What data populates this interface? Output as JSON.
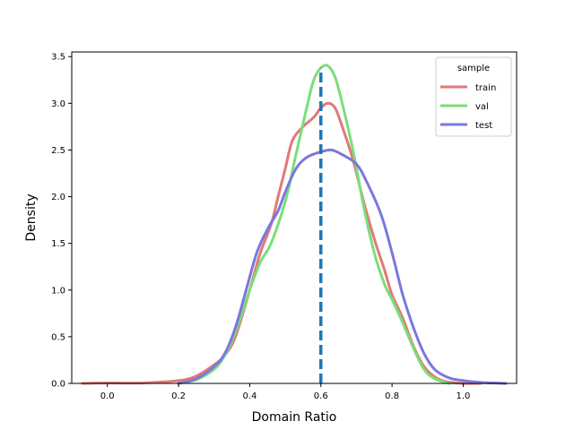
{
  "chart_data": {
    "type": "line",
    "xlabel": "Domain Ratio",
    "ylabel": "Density",
    "xlim": [
      -0.1,
      1.15
    ],
    "ylim": [
      0,
      3.55
    ],
    "xticks": [
      0.0,
      0.2,
      0.4,
      0.6,
      0.8,
      1.0
    ],
    "xtick_labels": [
      "0.0",
      "0.2",
      "0.4",
      "0.6",
      "0.8",
      "1.0"
    ],
    "yticks": [
      0.0,
      0.5,
      1.0,
      1.5,
      2.0,
      2.5,
      3.0,
      3.5
    ],
    "ytick_labels": [
      "0.0",
      "0.5",
      "1.0",
      "1.5",
      "2.0",
      "2.5",
      "3.0",
      "3.5"
    ],
    "grid": false,
    "legend": {
      "title": "sample",
      "position": "top-right"
    },
    "series": [
      {
        "name": "train",
        "color": "#e07a76",
        "points": [
          [
            -0.07,
            0.0
          ],
          [
            0.0,
            0.005
          ],
          [
            0.1,
            0.005
          ],
          [
            0.2,
            0.03
          ],
          [
            0.25,
            0.08
          ],
          [
            0.3,
            0.2
          ],
          [
            0.33,
            0.3
          ],
          [
            0.36,
            0.5
          ],
          [
            0.4,
            1.0
          ],
          [
            0.43,
            1.4
          ],
          [
            0.46,
            1.7
          ],
          [
            0.48,
            2.0
          ],
          [
            0.5,
            2.3
          ],
          [
            0.52,
            2.6
          ],
          [
            0.55,
            2.75
          ],
          [
            0.58,
            2.85
          ],
          [
            0.6,
            2.95
          ],
          [
            0.62,
            3.0
          ],
          [
            0.64,
            2.95
          ],
          [
            0.66,
            2.75
          ],
          [
            0.69,
            2.4
          ],
          [
            0.72,
            1.95
          ],
          [
            0.75,
            1.55
          ],
          [
            0.78,
            1.2
          ],
          [
            0.8,
            0.95
          ],
          [
            0.83,
            0.7
          ],
          [
            0.86,
            0.4
          ],
          [
            0.89,
            0.18
          ],
          [
            0.92,
            0.07
          ],
          [
            0.95,
            0.02
          ],
          [
            1.0,
            0.0
          ],
          [
            1.05,
            0.0
          ]
        ]
      },
      {
        "name": "val",
        "color": "#7ade7a",
        "points": [
          [
            0.2,
            0.0
          ],
          [
            0.25,
            0.04
          ],
          [
            0.3,
            0.15
          ],
          [
            0.33,
            0.3
          ],
          [
            0.36,
            0.55
          ],
          [
            0.4,
            1.0
          ],
          [
            0.43,
            1.3
          ],
          [
            0.46,
            1.5
          ],
          [
            0.5,
            1.95
          ],
          [
            0.53,
            2.45
          ],
          [
            0.56,
            2.95
          ],
          [
            0.58,
            3.25
          ],
          [
            0.6,
            3.38
          ],
          [
            0.62,
            3.4
          ],
          [
            0.64,
            3.28
          ],
          [
            0.66,
            3.0
          ],
          [
            0.69,
            2.5
          ],
          [
            0.72,
            1.9
          ],
          [
            0.75,
            1.4
          ],
          [
            0.78,
            1.05
          ],
          [
            0.8,
            0.9
          ],
          [
            0.83,
            0.65
          ],
          [
            0.86,
            0.38
          ],
          [
            0.89,
            0.15
          ],
          [
            0.92,
            0.05
          ],
          [
            0.96,
            0.0
          ]
        ]
      },
      {
        "name": "test",
        "color": "#7b77e0",
        "points": [
          [
            0.2,
            0.0
          ],
          [
            0.25,
            0.05
          ],
          [
            0.3,
            0.18
          ],
          [
            0.33,
            0.32
          ],
          [
            0.36,
            0.6
          ],
          [
            0.39,
            1.0
          ],
          [
            0.42,
            1.4
          ],
          [
            0.45,
            1.65
          ],
          [
            0.48,
            1.85
          ],
          [
            0.5,
            2.05
          ],
          [
            0.53,
            2.3
          ],
          [
            0.56,
            2.42
          ],
          [
            0.6,
            2.48
          ],
          [
            0.63,
            2.5
          ],
          [
            0.66,
            2.45
          ],
          [
            0.7,
            2.35
          ],
          [
            0.73,
            2.15
          ],
          [
            0.77,
            1.8
          ],
          [
            0.8,
            1.4
          ],
          [
            0.83,
            0.95
          ],
          [
            0.86,
            0.6
          ],
          [
            0.89,
            0.32
          ],
          [
            0.92,
            0.15
          ],
          [
            0.96,
            0.06
          ],
          [
            1.0,
            0.03
          ],
          [
            1.05,
            0.01
          ],
          [
            1.12,
            0.0
          ]
        ]
      }
    ],
    "reference_line": {
      "x": 0.6,
      "y_top": 3.38,
      "color": "#1f77b4",
      "style": "dashed"
    }
  }
}
